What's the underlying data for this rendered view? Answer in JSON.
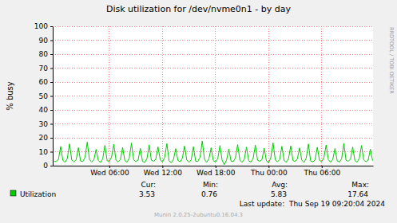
{
  "chart_data": {
    "type": "line",
    "title": "Disk utilization for /dev/nvme0n1 - by day",
    "y_label": "% busy",
    "watermark": "RRDTOOL / TOBI OETIKER",
    "x": [
      -0.25,
      0,
      0.25,
      0.5,
      0.75,
      1,
      1.25,
      1.5,
      1.75,
      2,
      2.25,
      2.5,
      2.75,
      3,
      3.25,
      3.5,
      3.75,
      4,
      4.25,
      4.5,
      4.75,
      5,
      5.25,
      5.5,
      5.75,
      6,
      6.25,
      6.5,
      6.75,
      7,
      7.25,
      7.5,
      7.75,
      8,
      8.25,
      8.5,
      8.75,
      9,
      9.25,
      9.5,
      9.75,
      10,
      10.25,
      10.5,
      10.75,
      11,
      11.25,
      11.5,
      11.75,
      12,
      12.25,
      12.5,
      12.75,
      13,
      13.25,
      13.5,
      13.75,
      14,
      14.25,
      14.5,
      14.75,
      15,
      15.25,
      15.5,
      15.75,
      16,
      16.25,
      16.5,
      16.75,
      17,
      17.25,
      17.5,
      17.75,
      18,
      18.25,
      18.5,
      18.75,
      19,
      19.25,
      19.5,
      19.75,
      20,
      20.25,
      20.5,
      20.75,
      21,
      21.25,
      21.5,
      21.75,
      22,
      22.25,
      22.5,
      22.75,
      23,
      23.25,
      23.5,
      23.75,
      24,
      24.25,
      24.5,
      24.75,
      25,
      25.25,
      25.5,
      25.75,
      26,
      26.25,
      26.5,
      26.75,
      27,
      27.25,
      27.5,
      27.75,
      28,
      28.25,
      28.5,
      28.75,
      29,
      29.25,
      29.5,
      29.75,
      30,
      30.25,
      30.5,
      30.75,
      31,
      31.25,
      31.5,
      31.75,
      32,
      32.25,
      32.5,
      32.75,
      33,
      33.25,
      33.5,
      33.75,
      34,
      34.25,
      34.5,
      34.75,
      35,
      35.25,
      35.5,
      35.75
    ],
    "series": [
      {
        "name": "Utilization",
        "color": "#00cc00",
        "values": [
          3.1,
          2.9,
          4.6,
          13.8,
          3.7,
          2.4,
          5.2,
          15.6,
          4.1,
          2.8,
          4.3,
          12.9,
          3.3,
          3.0,
          5.8,
          16.9,
          4.4,
          2.6,
          4.1,
          11.7,
          3.8,
          2.2,
          4.9,
          14.6,
          3.5,
          3.1,
          6.2,
          15.3,
          4.0,
          2.7,
          4.4,
          13.1,
          3.6,
          2.5,
          5.5,
          16.2,
          4.2,
          2.9,
          4.0,
          12.4,
          3.1,
          2.3,
          5.1,
          14.9,
          3.9,
          3.2,
          4.7,
          13.5,
          4.3,
          2.6,
          5.9,
          15.8,
          3.4,
          2.1,
          4.5,
          12.2,
          3.7,
          2.8,
          5.3,
          14.1,
          4.0,
          2.4,
          4.2,
          13.6,
          3.2,
          3.0,
          6.0,
          17.64,
          4.5,
          2.5,
          4.8,
          12.8,
          3.6,
          2.7,
          5.0,
          14.4,
          3.8,
          0.76,
          4.1,
          11.9,
          3.3,
          2.9,
          5.6,
          15.1,
          4.1,
          2.4,
          4.6,
          13.3,
          3.5,
          2.6,
          5.2,
          14.7,
          3.9,
          3.1,
          4.3,
          12.6,
          3.4,
          2.2,
          5.7,
          16.4,
          4.2,
          2.8,
          4.4,
          13.9,
          3.6,
          2.5,
          5.1,
          14.2,
          3.7,
          3.0,
          4.9,
          12.7,
          4.0,
          2.3,
          5.4,
          15.5,
          3.3,
          2.7,
          4.2,
          13.2,
          3.8,
          2.9,
          5.8,
          14.8,
          4.4,
          2.4,
          4.5,
          12.3,
          3.5,
          2.6,
          5.0,
          15.9,
          3.9,
          3.1,
          4.7,
          13.4,
          3.6,
          2.5,
          5.3,
          14.5,
          4.1,
          2.8,
          4.0,
          11.8,
          3.53
        ]
      }
    ],
    "xlim": [
      -0.4,
      35.8
    ],
    "xticks": [
      {
        "value": 6,
        "label": "Wed 06:00"
      },
      {
        "value": 12,
        "label": "Wed 12:00"
      },
      {
        "value": 18,
        "label": "Wed 18:00"
      },
      {
        "value": 24,
        "label": "Thu 00:00"
      },
      {
        "value": 30,
        "label": "Thu 06:00"
      }
    ],
    "ylim": [
      0,
      100
    ],
    "yticks": [
      0,
      10,
      20,
      30,
      40,
      50,
      60,
      70,
      80,
      90,
      100
    ],
    "grid": true,
    "summary": {
      "labels": [
        "Cur:",
        "Min:",
        "Avg:",
        "Max:"
      ],
      "values": [
        3.53,
        0.76,
        5.83,
        17.64
      ]
    },
    "last_update": "Last update:  Thu Sep 19 09:20:04 2024",
    "footer": "Munin 2.0.25-2ubuntu0.16.04.3"
  }
}
